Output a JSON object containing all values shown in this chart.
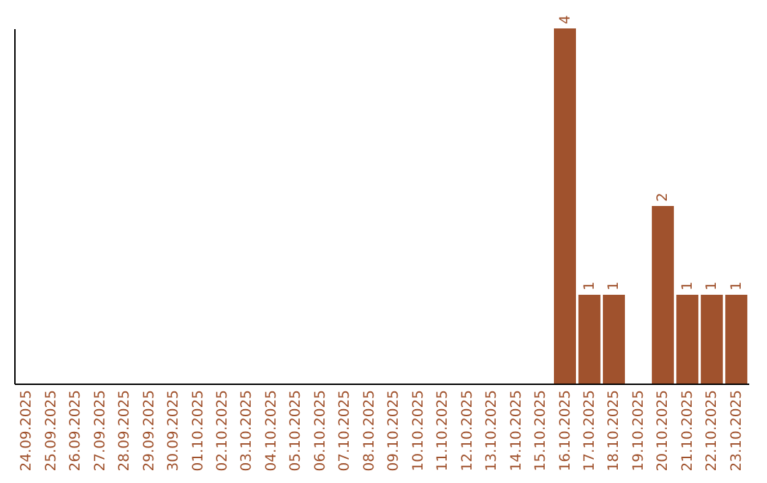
{
  "chart_data": {
    "type": "bar",
    "categories": [
      "24.09.2025",
      "25.09.2025",
      "26.09.2025",
      "27.09.2025",
      "28.09.2025",
      "29.09.2025",
      "30.09.2025",
      "01.10.2025",
      "02.10.2025",
      "03.10.2025",
      "04.10.2025",
      "05.10.2025",
      "06.10.2025",
      "07.10.2025",
      "08.10.2025",
      "09.10.2025",
      "10.10.2025",
      "11.10.2025",
      "12.10.2025",
      "13.10.2025",
      "14.10.2025",
      "15.10.2025",
      "16.10.2025",
      "17.10.2025",
      "18.10.2025",
      "19.10.2025",
      "20.10.2025",
      "21.10.2025",
      "22.10.2025",
      "23.10.2025"
    ],
    "values": [
      null,
      null,
      null,
      null,
      null,
      null,
      null,
      null,
      null,
      null,
      null,
      null,
      null,
      null,
      null,
      null,
      null,
      null,
      null,
      null,
      null,
      null,
      4,
      1,
      1,
      null,
      2,
      1,
      1,
      1
    ],
    "data_labels": true,
    "tick_labels": "x",
    "color": "#a0522d"
  }
}
